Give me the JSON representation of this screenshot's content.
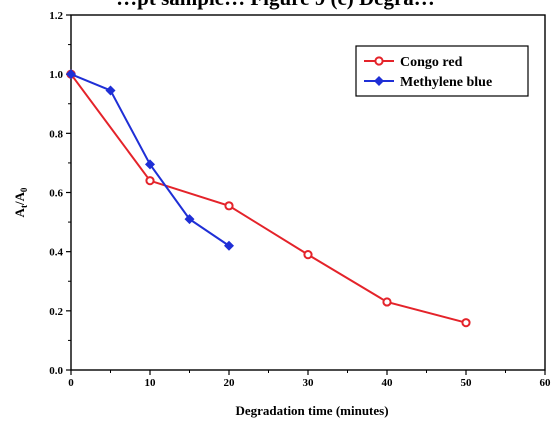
{
  "header": {
    "cut_caption": "…pt sample… Figure 9 (c) Degra…"
  },
  "chart_data": {
    "type": "line",
    "xlabel": "Degradation time (minutes)",
    "ylabel": "A_t/A_0",
    "xlim": [
      0,
      60
    ],
    "ylim": [
      0.0,
      1.2
    ],
    "xticks": [
      0,
      10,
      20,
      30,
      40,
      50,
      60
    ],
    "yticks": [
      0.0,
      0.2,
      0.4,
      0.6,
      0.8,
      1.0,
      1.2
    ],
    "ytick_labels": [
      "0.0",
      "0.2",
      "0.4",
      "0.6",
      "0.8",
      "1.0",
      "1.2"
    ],
    "grid": false,
    "legend_position": "top-right",
    "series": [
      {
        "name": "Congo red",
        "color": "#e4232a",
        "marker": "circle",
        "x": [
          0,
          10,
          20,
          30,
          40,
          50
        ],
        "y": [
          1.0,
          0.64,
          0.555,
          0.39,
          0.23,
          0.16
        ]
      },
      {
        "name": "Methylene blue",
        "color": "#1f2fd6",
        "marker": "diamond",
        "x": [
          0,
          5,
          10,
          15,
          20
        ],
        "y": [
          1.0,
          0.945,
          0.695,
          0.51,
          0.42
        ]
      }
    ]
  }
}
